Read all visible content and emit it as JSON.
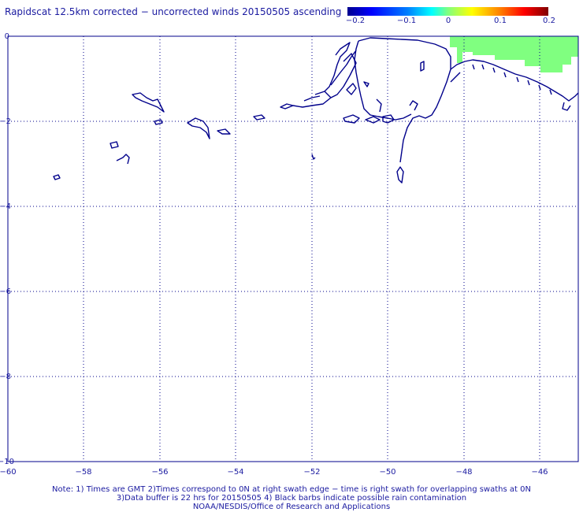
{
  "title": "Rapidscat 12.5km corrected − uncorrected winds 20150505 ascending",
  "colorbar": {
    "labels": [
      "−0.2",
      "−0.1",
      "0",
      "0.1",
      "0.2"
    ],
    "colors": [
      "#00008f",
      "#0000ff",
      "#00ffff",
      "#80ff80",
      "#ffff00",
      "#ff8000",
      "#ff0000",
      "#800000"
    ]
  },
  "map": {
    "lon_ticks": [
      "−60",
      "−58",
      "−56",
      "−54",
      "−52",
      "−50",
      "−48",
      "−46"
    ],
    "lat_ticks": [
      "0",
      "−2",
      "−4",
      "−6",
      "−8",
      "−10"
    ],
    "lon_range": [
      -60,
      -45
    ],
    "lat_range": [
      -10,
      0
    ],
    "coast_color": "#00008b",
    "swath_color": "#80ff80"
  },
  "notes": {
    "line1": "Note: 1) Times are GMT 2)Times correspond to 0N at right swath edge − time is right swath for overlapping swaths at 0N",
    "line2": "3)Data buffer is 22 hrs for 20150505 4) Black barbs indicate possible rain contamination",
    "line3": "NOAA/NESDIS/Office of Research and Applications"
  }
}
